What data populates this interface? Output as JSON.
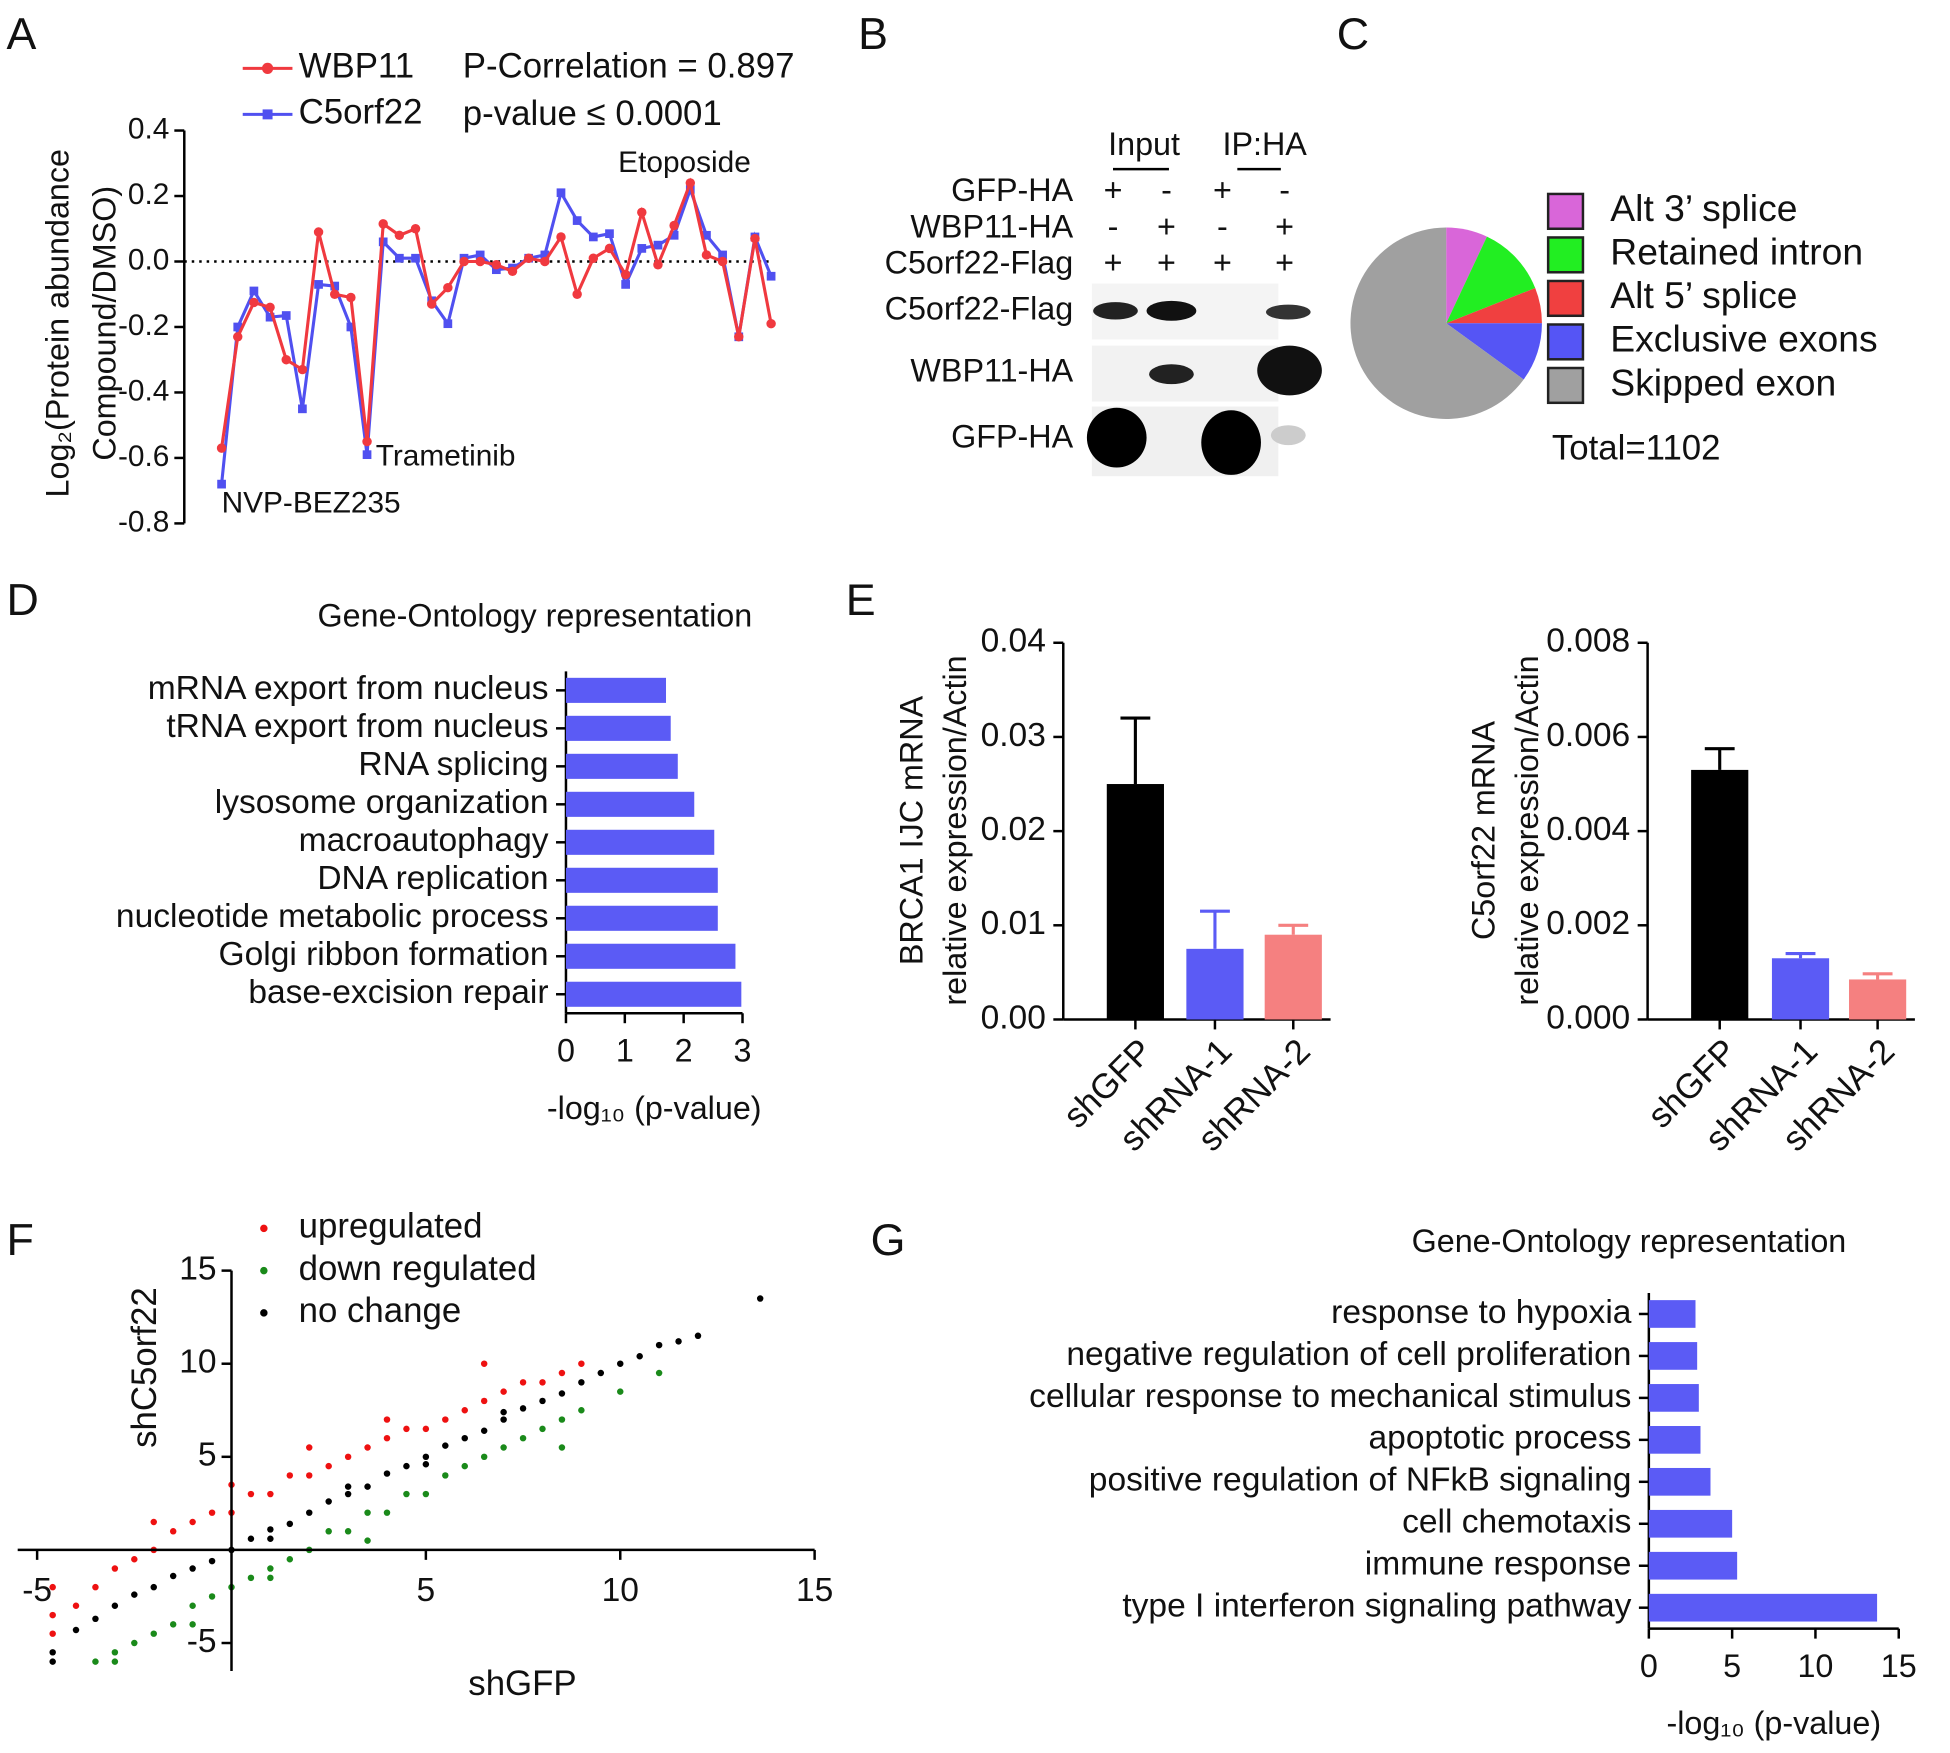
{
  "chart_data": [
    {
      "type": "line",
      "panel_label": "A",
      "y_label": [
        "Log₂(Protein abundance",
        "Compound/DMSO)"
      ],
      "categories": [
        null,
        null,
        null,
        null,
        null,
        null,
        null,
        null,
        null,
        null,
        null,
        null,
        null,
        null,
        null,
        null,
        null,
        null,
        null,
        null,
        null,
        null,
        null,
        null,
        null,
        null,
        null,
        null,
        null,
        null,
        null,
        null,
        null,
        null,
        null
      ],
      "series": [
        {
          "name": "WBP11",
          "color": "#f0393f",
          "marker": "circle",
          "values": [
            -0.57,
            -0.23,
            -0.125,
            -0.14,
            -0.3,
            -0.33,
            0.09,
            -0.1,
            -0.11,
            -0.55,
            0.115,
            0.08,
            0.1,
            -0.13,
            -0.08,
            0,
            0,
            -0.01,
            -0.03,
            0.01,
            0,
            0.075,
            -0.1,
            0.01,
            0.04,
            -0.04,
            0.15,
            -0.01,
            0.11,
            0.24,
            0.02,
            0,
            -0.23,
            0.07,
            -0.19
          ]
        },
        {
          "name": "C5orf22",
          "color": "#5050f0",
          "marker": "square",
          "values": [
            -0.68,
            -0.2,
            -0.09,
            -0.17,
            -0.165,
            -0.45,
            -0.07,
            -0.075,
            -0.2,
            -0.59,
            0.06,
            0.01,
            0.01,
            -0.12,
            -0.19,
            0.01,
            0.02,
            -0.025,
            -0.02,
            0.01,
            0.02,
            0.21,
            0.125,
            0.075,
            0.085,
            -0.07,
            0.04,
            0.05,
            0.08,
            0.22,
            0.08,
            0.02,
            -0.23,
            0.075,
            -0.045
          ]
        }
      ],
      "ylim": [
        -0.8,
        0.4
      ],
      "yticks": [
        0.4,
        0.2,
        {
          "value": 0,
          "label": "0.0"
        },
        -0.2,
        -0.4,
        -0.6,
        -0.8
      ],
      "reference_line": 0,
      "annotations": [
        "P-Correlation = 0.897",
        "p-value ≤ 0.0001",
        "NVP-BEZ235",
        "Trametinib",
        "Etoposide"
      ]
    },
    {
      "type": "pie",
      "panel_label": "C",
      "labels": [
        "Alt 3’ splice",
        "Retained intron",
        "Alt 5’ splice",
        "Exclusive exons",
        "Skipped exon"
      ],
      "values": [
        7,
        12,
        6,
        10,
        65
      ],
      "colors": [
        "#d966d9",
        "#22ee22",
        "#f04040",
        "#5555f5",
        "#a0a0a0"
      ],
      "annotations": [
        "Total=1102"
      ]
    },
    {
      "type": "hbar",
      "panel_label": "D",
      "title": "Gene-Ontology representation",
      "categories": [
        "mRNA export from nucleus",
        "tRNA export from nucleus",
        "RNA splicing",
        "lysosome organization",
        "macroautophagy",
        "DNA replication",
        "nucleotide metabolic process",
        "Golgi ribbon formation",
        "base-excision repair"
      ],
      "values": [
        1.7,
        1.78,
        1.9,
        2.18,
        2.52,
        2.58,
        2.58,
        2.88,
        2.98
      ],
      "color": "#5b5bf5",
      "xlim": [
        0,
        3
      ],
      "xticks": [
        0,
        1,
        2,
        3
      ],
      "x_label": "-log₁₀ (p-value)"
    },
    {
      "type": "bar",
      "panel_label": "E",
      "y_label": [
        "BRCA1 IJC mRNA",
        "relative expression/Actin"
      ],
      "categories": [
        "shGFP",
        "shRNA-1",
        "shRNA-2"
      ],
      "values": [
        0.025,
        0.0075,
        0.009
      ],
      "errors": [
        0.007,
        0.004,
        0.001
      ],
      "colors": [
        "#000000",
        "#5b5bf5",
        "#f58080"
      ],
      "ylim": [
        0,
        0.04
      ],
      "yticks": [
        {
          "value": 0,
          "label": "0.00"
        },
        0.01,
        0.02,
        0.03,
        0.04
      ]
    },
    {
      "type": "bar",
      "y_label": [
        "C5orf22 mRNA",
        "relative expression/Actin"
      ],
      "categories": [
        "shGFP",
        "shRNA-1",
        "shRNA-2"
      ],
      "values": [
        0.0053,
        0.0013,
        0.00085
      ],
      "errors": [
        0.00045,
        0.0001,
        0.00012
      ],
      "colors": [
        "#000000",
        "#5b5bf5",
        "#f58080"
      ],
      "ylim": [
        0,
        0.008
      ],
      "yticks": [
        {
          "value": 0,
          "label": "0.000"
        },
        0.002,
        0.004,
        0.006,
        0.008
      ]
    },
    {
      "type": "scatter",
      "panel_label": "F",
      "x_label": "shGFP",
      "y_label": "shC5orf22",
      "series": [
        {
          "name": "upregulated",
          "color": "#ee1111",
          "x": [
            -4.6,
            -4.6,
            -4.6,
            -4,
            -3.5,
            -3,
            -2.5,
            -2,
            -1.5,
            -1,
            -0.5,
            0,
            0.5,
            1,
            1.5,
            2,
            2.5,
            3,
            3.5,
            4,
            4.5,
            5,
            5.5,
            6,
            6.5,
            7,
            7.5,
            8,
            8.5,
            9,
            -2,
            0,
            2,
            4,
            6.5
          ],
          "y": [
            -4.5,
            -3.5,
            -2,
            -3,
            -2,
            -1,
            -0.5,
            0,
            1,
            1.5,
            2,
            2,
            3,
            3,
            4,
            4,
            4.5,
            5,
            5.5,
            6,
            6.5,
            6.5,
            7,
            7.5,
            8,
            8.5,
            9,
            9,
            9.5,
            10,
            1.5,
            3.5,
            5.5,
            7,
            10
          ]
        },
        {
          "name": "down regulated",
          "color": "#1a8a1a",
          "x": [
            -3.5,
            -3,
            -2.5,
            -2,
            -1.5,
            -1,
            -0.5,
            0,
            0.5,
            1,
            1.5,
            2,
            2.5,
            3,
            3.5,
            4,
            4.5,
            5,
            5.5,
            6,
            6.5,
            7,
            7.5,
            8,
            8.5,
            9,
            10,
            11,
            -3,
            -1,
            1,
            3.5,
            8.5
          ],
          "y": [
            -6,
            -6,
            -5,
            -4.5,
            -4,
            -3,
            -2.5,
            -2,
            -1.5,
            -1,
            -0.5,
            0,
            1,
            1,
            2,
            2,
            3,
            3,
            4,
            4.5,
            5,
            5.5,
            6,
            6.5,
            7,
            7.5,
            8.5,
            9.5,
            -5.5,
            -4,
            -1.5,
            0.5,
            5.5
          ]
        },
        {
          "name": "no change",
          "color": "#000000",
          "x": [
            -4.6,
            -4.6,
            -4,
            -3.5,
            -3,
            -2.5,
            -2,
            -1.5,
            -1,
            -0.5,
            0,
            0.5,
            1,
            1.5,
            2,
            2.5,
            3,
            3.5,
            4,
            4.5,
            5,
            5.5,
            6,
            6.5,
            7,
            7.5,
            8,
            8.5,
            9,
            9.5,
            10,
            10.5,
            11,
            11.5,
            12,
            13.6,
            1,
            3,
            5,
            7
          ],
          "y": [
            -6,
            -5.5,
            -4.3,
            -3.7,
            -3,
            -2.4,
            -2,
            -1.4,
            -1,
            -0.6,
            0,
            0.6,
            1.1,
            1.4,
            2,
            2.6,
            3,
            3.4,
            4.1,
            4.5,
            5,
            5.6,
            6,
            6.4,
            7,
            7.6,
            8,
            8.4,
            9,
            9.5,
            10,
            10.4,
            11,
            11.2,
            11.5,
            13.5,
            0.6,
            3.4,
            4.6,
            7.4
          ]
        }
      ],
      "xlim": [
        -5.5,
        15
      ],
      "ylim": [
        -6.5,
        15
      ],
      "xticks": [
        -5,
        5,
        10,
        15
      ],
      "yticks": [
        -5,
        5,
        10,
        15
      ],
      "legend": "upper left"
    },
    {
      "type": "hbar",
      "panel_label": "G",
      "title": "Gene-Ontology representation",
      "categories": [
        "response to hypoxia",
        "negative regulation of cell proliferation",
        "cellular response to mechanical stimulus",
        "apoptotic process",
        "positive regulation of NFkB signaling",
        "cell chemotaxis",
        "immune response",
        "type I interferon signaling pathway"
      ],
      "values": [
        2.8,
        2.9,
        3.0,
        3.1,
        3.7,
        5.0,
        5.3,
        13.7
      ],
      "color": "#5b5bf5",
      "xlim": [
        0,
        15
      ],
      "xticks": [
        0,
        5,
        10,
        15
      ],
      "x_label": "-log₁₀ (p-value)"
    }
  ],
  "blot": {
    "panel_label": "B",
    "headers": [
      "Input",
      "IP:HA"
    ],
    "rows": [
      {
        "label": "GFP-HA",
        "signs": [
          "+",
          "-",
          "+",
          "-"
        ]
      },
      {
        "label": "WBP11-HA",
        "signs": [
          "-",
          "+",
          "-",
          "+"
        ]
      },
      {
        "label": "C5orf22-Flag",
        "signs": [
          "+",
          "+",
          "+",
          "+"
        ]
      }
    ],
    "bands": [
      "C5orf22-Flag",
      "WBP11-HA",
      "GFP-HA"
    ]
  }
}
